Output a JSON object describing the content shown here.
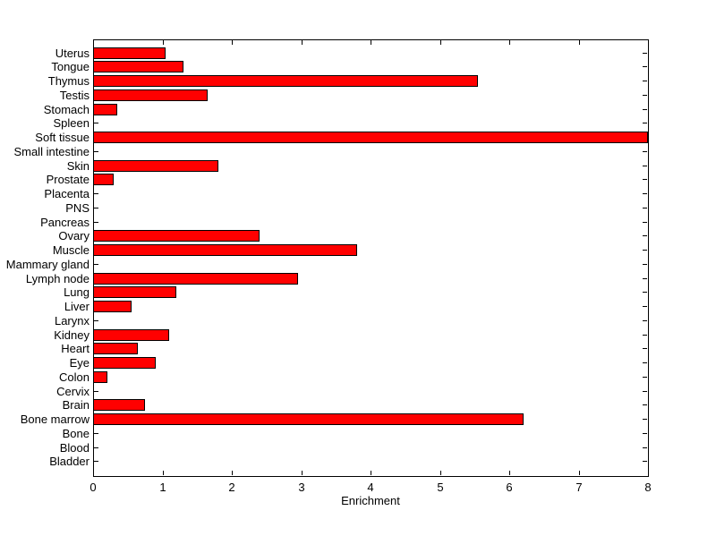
{
  "chart_data": {
    "type": "bar",
    "orientation": "horizontal",
    "title": "",
    "xlabel": "Enrichment",
    "ylabel": "",
    "xlim": [
      0,
      8
    ],
    "x_ticks": [
      0,
      1,
      2,
      3,
      4,
      5,
      6,
      7,
      8
    ],
    "grid": false,
    "legend": null,
    "category_order": "top-to-bottom",
    "categories": [
      "Uterus",
      "Tongue",
      "Thymus",
      "Testis",
      "Stomach",
      "Spleen",
      "Soft tissue",
      "Small intestine",
      "Skin",
      "Prostate",
      "Placenta",
      "PNS",
      "Pancreas",
      "Ovary",
      "Muscle",
      "Mammary gland",
      "Lymph node",
      "Lung",
      "Liver",
      "Larynx",
      "Kidney",
      "Heart",
      "Eye",
      "Colon",
      "Cervix",
      "Brain",
      "Bone marrow",
      "Bone",
      "Blood",
      "Bladder"
    ],
    "values": [
      1.05,
      1.3,
      5.55,
      1.65,
      0.35,
      0,
      8.0,
      0,
      1.8,
      0.3,
      0,
      0,
      0,
      2.4,
      3.8,
      0,
      2.95,
      1.2,
      0.55,
      0,
      1.1,
      0.65,
      0.9,
      0.2,
      0,
      0.75,
      6.2,
      0,
      0,
      0
    ],
    "colors": {
      "bar_fill": "#ff0000",
      "bar_edge": "#000000",
      "axis": "#000000",
      "text": "#000000",
      "background": "#ffffff"
    }
  }
}
